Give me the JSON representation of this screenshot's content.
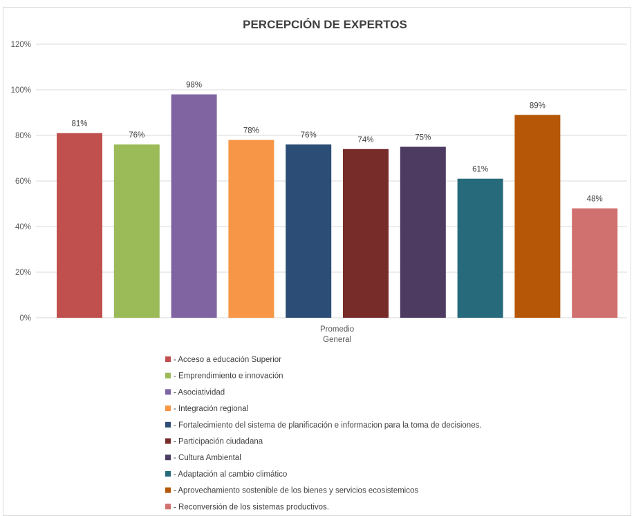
{
  "chart_data": {
    "type": "bar",
    "title": "PERCEPCIÓN DE EXPERTOS",
    "categories": [
      "Promedio General"
    ],
    "category_label_lines": [
      "Promedio",
      "General"
    ],
    "ylim": [
      0,
      1.2
    ],
    "yticks": [
      0,
      0.2,
      0.4,
      0.6,
      0.8,
      1.0,
      1.2
    ],
    "ytick_labels": [
      "0%",
      "20%",
      "40%",
      "60%",
      "80%",
      "100%",
      "120%"
    ],
    "grid": true,
    "legend_position": "bottom",
    "series": [
      {
        "name": "- Acceso a educación Superior",
        "values": [
          0.81
        ],
        "label": "81%",
        "color": "#c0504d"
      },
      {
        "name": "- Emprendimiento e innovación",
        "values": [
          0.76
        ],
        "label": "76%",
        "color": "#9bbb59"
      },
      {
        "name": "- Asociatividad",
        "values": [
          0.98
        ],
        "label": "98%",
        "color": "#8064a2"
      },
      {
        "name": "- Integración regional",
        "values": [
          0.78
        ],
        "label": "78%",
        "color": "#f79646"
      },
      {
        "name": "- Fortalecimiento del sistema de planificación e informacion para la toma de decisiones.",
        "values": [
          0.76
        ],
        "label": "76%",
        "color": "#2c4d75"
      },
      {
        "name": "- Participación ciudadana",
        "values": [
          0.74
        ],
        "label": "74%",
        "color": "#772c2a"
      },
      {
        "name": "- Cultura Ambiental",
        "values": [
          0.75
        ],
        "label": "75%",
        "color": "#4d3b62"
      },
      {
        "name": "- Adaptación al cambio climático",
        "values": [
          0.61
        ],
        "label": "61%",
        "color": "#276a7c"
      },
      {
        "name": "- Aprovechamiento sostenible de los bienes y servicios ecosistemicos",
        "values": [
          0.89
        ],
        "label": "89%",
        "color": "#b65708"
      },
      {
        "name": "- Reconversión de los sistemas productivos.",
        "values": [
          0.48
        ],
        "label": "48%",
        "color": "#d0716f"
      }
    ]
  }
}
